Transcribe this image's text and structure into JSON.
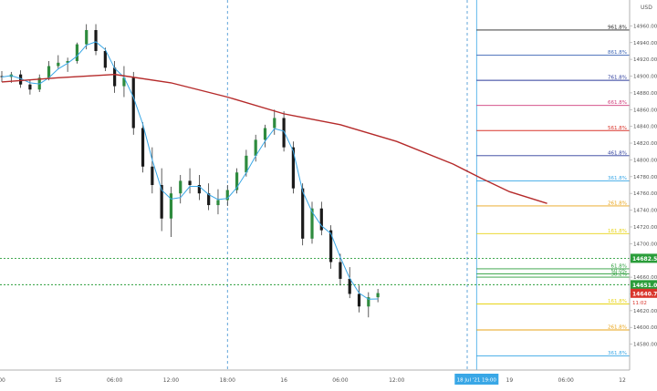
{
  "currency": "USD",
  "price_axis": {
    "ticks": [
      14960,
      14940,
      14920,
      14900,
      14880,
      14860,
      14840,
      14820,
      14800,
      14780,
      14760,
      14740,
      14720,
      14700,
      14680,
      14660,
      14640,
      14620,
      14600,
      14580
    ]
  },
  "time_axis": {
    "labels": [
      {
        "text": "00",
        "t": 0
      },
      {
        "text": "15",
        "t": 6
      },
      {
        "text": "06:00",
        "t": 12
      },
      {
        "text": "12:00",
        "t": 18
      },
      {
        "text": "18:00",
        "t": 24
      },
      {
        "text": "16",
        "t": 30
      },
      {
        "text": "06:00",
        "t": 36
      },
      {
        "text": "12:00",
        "t": 42
      },
      {
        "text": "19",
        "t": 54
      },
      {
        "text": "06:00",
        "t": 60
      },
      {
        "text": "12",
        "t": 66
      }
    ],
    "crosshair_label": "18 Jul '21  19:00"
  },
  "price_labels": {
    "level_1": {
      "value": "14682.50",
      "color": "#2a9d3a"
    },
    "level_2": {
      "value": "14651.00",
      "color": "#2a9d3a"
    },
    "last_price": {
      "value": "14640.75",
      "color": "#d9342b"
    },
    "countdown": "11:02"
  },
  "fib_labels": {
    "f961": "961.8%",
    "f861": "861.8%",
    "f761": "761.8%",
    "f661": "661.8%",
    "f561": "561.8%",
    "f461": "461.8%",
    "f361": "361.8%",
    "f261": "261.8%",
    "f161": "161.8%",
    "f61": "61.8%",
    "f50": "50.0%",
    "f38": "38.2%",
    "f_lo": "161.8%",
    "f_lo2": "261.8%",
    "f_lo3": "361.8%"
  },
  "chart_data": {
    "type": "candlestick",
    "xlabel": "",
    "ylabel": "",
    "ylim": [
      14560,
      14980
    ],
    "moving_averages": [
      {
        "color": "#39a7e6"
      },
      {
        "color": "#b52a2a"
      }
    ],
    "horizontal_levels": [
      {
        "value": 14682.5,
        "style": "dotted",
        "color": "#2a9d3a"
      },
      {
        "value": 14651.0,
        "style": "dotted",
        "color": "#2a9d3a"
      }
    ],
    "fibonacci_levels": [
      {
        "label": "961.8%",
        "value": 14955,
        "color": "#222222"
      },
      {
        "label": "861.8%",
        "value": 14925,
        "color": "#3b64b5"
      },
      {
        "label": "761.8%",
        "value": 14895,
        "color": "#2a3a9a"
      },
      {
        "label": "661.8%",
        "value": 14865,
        "color": "#cf3b7a"
      },
      {
        "label": "561.8%",
        "value": 14835,
        "color": "#d9342b"
      },
      {
        "label": "461.8%",
        "value": 14805,
        "color": "#2a3a9a"
      },
      {
        "label": "361.8%",
        "value": 14775,
        "color": "#39a7e6"
      },
      {
        "label": "261.8%",
        "value": 14745,
        "color": "#e8a317"
      },
      {
        "label": "161.8%",
        "value": 14712,
        "color": "#e8d417"
      },
      {
        "label": "61.8%",
        "value": 14670,
        "color": "#2a9d3a"
      },
      {
        "label": "50.0%",
        "value": 14664,
        "color": "#2a9d3a"
      },
      {
        "label": "38.2%",
        "value": 14660,
        "color": "#2a9d3a"
      },
      {
        "label": "161.8%",
        "value": 14628,
        "color": "#e8d417"
      },
      {
        "label": "261.8%",
        "value": 14597,
        "color": "#e8a317"
      },
      {
        "label": "361.8%",
        "value": 14566,
        "color": "#39a7e6"
      }
    ],
    "candles": [
      {
        "t": 0,
        "o": 14900,
        "h": 14906,
        "l": 14893,
        "c": 14899
      },
      {
        "t": 1,
        "o": 14899,
        "h": 14905,
        "l": 14892,
        "c": 14902
      },
      {
        "t": 2,
        "o": 14902,
        "h": 14907,
        "l": 14886,
        "c": 14890
      },
      {
        "t": 3,
        "o": 14890,
        "h": 14896,
        "l": 14878,
        "c": 14884
      },
      {
        "t": 4,
        "o": 14884,
        "h": 14902,
        "l": 14881,
        "c": 14898
      },
      {
        "t": 5,
        "o": 14898,
        "h": 14918,
        "l": 14895,
        "c": 14912
      },
      {
        "t": 6,
        "o": 14912,
        "h": 14925,
        "l": 14908,
        "c": 14916
      },
      {
        "t": 7,
        "o": 14916,
        "h": 14922,
        "l": 14905,
        "c": 14918
      },
      {
        "t": 8,
        "o": 14918,
        "h": 14940,
        "l": 14915,
        "c": 14938
      },
      {
        "t": 9,
        "o": 14938,
        "h": 14962,
        "l": 14932,
        "c": 14955
      },
      {
        "t": 10,
        "o": 14955,
        "h": 14962,
        "l": 14925,
        "c": 14930
      },
      {
        "t": 11,
        "o": 14930,
        "h": 14934,
        "l": 14906,
        "c": 14910
      },
      {
        "t": 12,
        "o": 14910,
        "h": 14918,
        "l": 14880,
        "c": 14888
      },
      {
        "t": 13,
        "o": 14888,
        "h": 14912,
        "l": 14875,
        "c": 14898
      },
      {
        "t": 14,
        "o": 14898,
        "h": 14905,
        "l": 14830,
        "c": 14838
      },
      {
        "t": 15,
        "o": 14838,
        "h": 14845,
        "l": 14785,
        "c": 14792
      },
      {
        "t": 16,
        "o": 14792,
        "h": 14815,
        "l": 14760,
        "c": 14770
      },
      {
        "t": 17,
        "o": 14770,
        "h": 14790,
        "l": 14715,
        "c": 14730
      },
      {
        "t": 18,
        "o": 14730,
        "h": 14768,
        "l": 14708,
        "c": 14760
      },
      {
        "t": 19,
        "o": 14760,
        "h": 14782,
        "l": 14748,
        "c": 14775
      },
      {
        "t": 20,
        "o": 14775,
        "h": 14790,
        "l": 14760,
        "c": 14770
      },
      {
        "t": 21,
        "o": 14770,
        "h": 14782,
        "l": 14752,
        "c": 14760
      },
      {
        "t": 22,
        "o": 14760,
        "h": 14772,
        "l": 14740,
        "c": 14746
      },
      {
        "t": 23,
        "o": 14746,
        "h": 14765,
        "l": 14735,
        "c": 14752
      },
      {
        "t": 24,
        "o": 14752,
        "h": 14770,
        "l": 14745,
        "c": 14764
      },
      {
        "t": 25,
        "o": 14764,
        "h": 14790,
        "l": 14760,
        "c": 14785
      },
      {
        "t": 26,
        "o": 14785,
        "h": 14812,
        "l": 14780,
        "c": 14805
      },
      {
        "t": 27,
        "o": 14805,
        "h": 14830,
        "l": 14798,
        "c": 14824
      },
      {
        "t": 28,
        "o": 14824,
        "h": 14842,
        "l": 14815,
        "c": 14838
      },
      {
        "t": 29,
        "o": 14838,
        "h": 14860,
        "l": 14830,
        "c": 14850
      },
      {
        "t": 30,
        "o": 14850,
        "h": 14858,
        "l": 14810,
        "c": 14815
      },
      {
        "t": 31,
        "o": 14815,
        "h": 14822,
        "l": 14760,
        "c": 14766
      },
      {
        "t": 32,
        "o": 14766,
        "h": 14772,
        "l": 14698,
        "c": 14706
      },
      {
        "t": 33,
        "o": 14706,
        "h": 14750,
        "l": 14700,
        "c": 14742
      },
      {
        "t": 34,
        "o": 14742,
        "h": 14750,
        "l": 14710,
        "c": 14716
      },
      {
        "t": 35,
        "o": 14716,
        "h": 14722,
        "l": 14670,
        "c": 14678
      },
      {
        "t": 36,
        "o": 14678,
        "h": 14688,
        "l": 14650,
        "c": 14658
      },
      {
        "t": 37,
        "o": 14658,
        "h": 14672,
        "l": 14635,
        "c": 14640
      },
      {
        "t": 38,
        "o": 14640,
        "h": 14650,
        "l": 14618,
        "c": 14625
      },
      {
        "t": 39,
        "o": 14625,
        "h": 14642,
        "l": 14612,
        "c": 14636
      },
      {
        "t": 40,
        "o": 14636,
        "h": 14646,
        "l": 14630,
        "c": 14641
      }
    ]
  }
}
